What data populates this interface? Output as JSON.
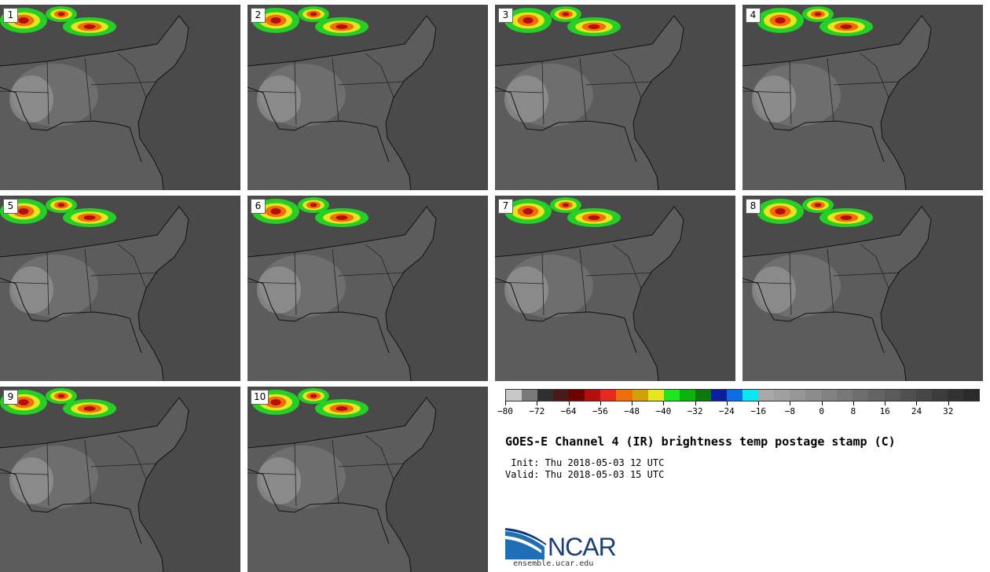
{
  "panels": [
    {
      "label": "1"
    },
    {
      "label": "2"
    },
    {
      "label": "3"
    },
    {
      "label": "4"
    },
    {
      "label": "5"
    },
    {
      "label": "6"
    },
    {
      "label": "7"
    },
    {
      "label": "8"
    },
    {
      "label": "9"
    },
    {
      "label": "10"
    }
  ],
  "colorbar": {
    "colors": [
      "#c8c8c8",
      "#7a7a7a",
      "#2f2f2f",
      "#4a1a1a",
      "#6e0000",
      "#b40f0f",
      "#e6281e",
      "#f06e0a",
      "#d2a00a",
      "#e6e61e",
      "#1ee61e",
      "#0ab40a",
      "#0a780a",
      "#0a1ea0",
      "#0a6ee6",
      "#0ae6f0",
      "#a8a8a8",
      "#a0a0a0",
      "#969696",
      "#8c8c8c",
      "#828282",
      "#787878",
      "#6e6e6e",
      "#646464",
      "#5a5a5a",
      "#505050",
      "#464646",
      "#3c3c3c",
      "#323232",
      "#2a2a2a"
    ],
    "ticks": [
      "−80",
      "−72",
      "−64",
      "−56",
      "−48",
      "−40",
      "−32",
      "−24",
      "−16",
      "−8",
      "0",
      "8",
      "16",
      "24",
      "32"
    ]
  },
  "title": "GOES-E Channel 4 (IR) brightness temp postage stamp (C)",
  "init": " Init: Thu 2018-05-03 12 UTC",
  "valid": "Valid: Thu 2018-05-03 15 UTC",
  "logo": {
    "text": "NCAR",
    "url": "ensemble.ucar.edu"
  }
}
